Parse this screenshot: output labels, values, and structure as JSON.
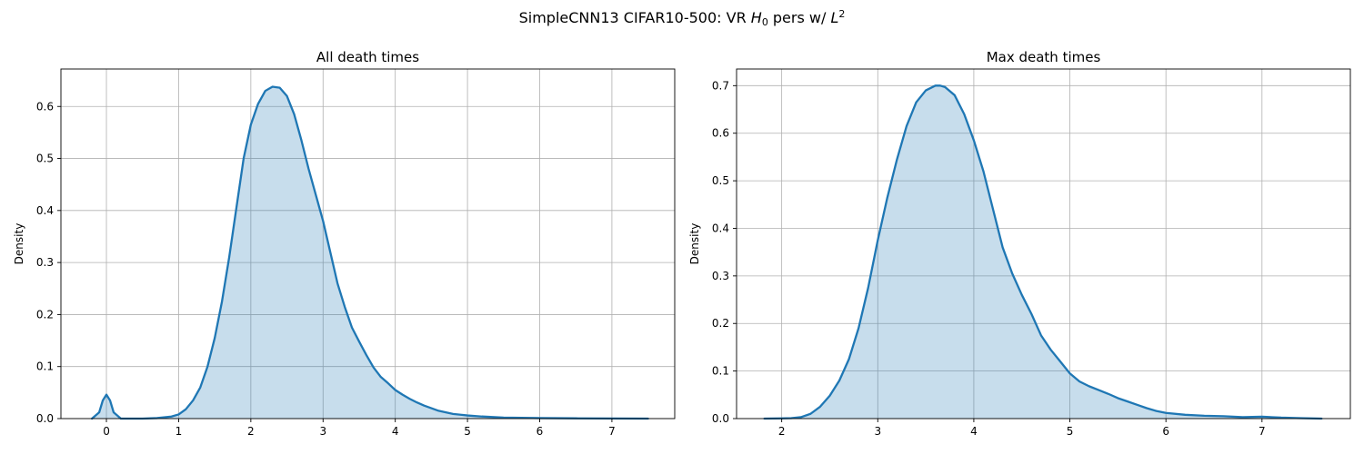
{
  "figure": {
    "title_prefix": "SimpleCNN13 CIFAR10-500: VR ",
    "title_h": "H",
    "title_h_sub": "0",
    "title_mid": " pers w/ ",
    "title_l": "L",
    "title_l_sup": "2"
  },
  "colors": {
    "line": "#1f77b4",
    "fill": "#1f77b4",
    "grid": "#b0b0b0"
  },
  "chart_data": [
    {
      "type": "area",
      "title": "All death times",
      "xlabel": "",
      "ylabel": "Density",
      "xlim": [
        -0.63,
        7.87
      ],
      "ylim": [
        0,
        0.672
      ],
      "xticks": [
        0,
        1,
        2,
        3,
        4,
        5,
        6,
        7
      ],
      "yticks": [
        0.0,
        0.1,
        0.2,
        0.3,
        0.4,
        0.5,
        0.6
      ],
      "grid": true,
      "series": [
        {
          "x": [
            -0.2,
            -0.1,
            -0.05,
            0.0,
            0.05,
            0.1,
            0.2,
            0.3,
            0.5,
            0.7,
            0.9,
            1.0,
            1.1,
            1.2,
            1.3,
            1.4,
            1.5,
            1.6,
            1.7,
            1.8,
            1.9,
            2.0,
            2.1,
            2.2,
            2.3,
            2.4,
            2.5,
            2.6,
            2.7,
            2.8,
            2.9,
            3.0,
            3.1,
            3.2,
            3.3,
            3.4,
            3.5,
            3.6,
            3.7,
            3.8,
            3.9,
            4.0,
            4.1,
            4.2,
            4.3,
            4.4,
            4.5,
            4.6,
            4.8,
            5.0,
            5.2,
            5.5,
            6.0,
            6.5,
            7.0,
            7.5
          ],
          "y": [
            0.0,
            0.012,
            0.035,
            0.046,
            0.035,
            0.012,
            0.0,
            0.0,
            0.0,
            0.001,
            0.004,
            0.008,
            0.018,
            0.035,
            0.06,
            0.1,
            0.155,
            0.225,
            0.31,
            0.405,
            0.5,
            0.565,
            0.605,
            0.63,
            0.638,
            0.636,
            0.62,
            0.585,
            0.535,
            0.48,
            0.43,
            0.38,
            0.32,
            0.26,
            0.215,
            0.175,
            0.148,
            0.122,
            0.098,
            0.08,
            0.068,
            0.055,
            0.046,
            0.038,
            0.031,
            0.025,
            0.02,
            0.015,
            0.009,
            0.006,
            0.004,
            0.002,
            0.001,
            0.0005,
            0.0002,
            0.0
          ]
        }
      ]
    },
    {
      "type": "area",
      "title": "Max death times",
      "xlabel": "",
      "ylabel": "Density",
      "xlim": [
        1.53,
        7.92
      ],
      "ylim": [
        0,
        0.735
      ],
      "xticks": [
        2,
        3,
        4,
        5,
        6,
        7
      ],
      "yticks": [
        0.0,
        0.1,
        0.2,
        0.3,
        0.4,
        0.5,
        0.6,
        0.7
      ],
      "grid": true,
      "series": [
        {
          "x": [
            1.82,
            2.0,
            2.1,
            2.2,
            2.3,
            2.4,
            2.5,
            2.6,
            2.7,
            2.8,
            2.9,
            3.0,
            3.1,
            3.2,
            3.3,
            3.4,
            3.5,
            3.6,
            3.65,
            3.7,
            3.8,
            3.9,
            4.0,
            4.1,
            4.2,
            4.3,
            4.4,
            4.5,
            4.6,
            4.7,
            4.8,
            4.9,
            5.0,
            5.1,
            5.2,
            5.3,
            5.4,
            5.5,
            5.6,
            5.7,
            5.8,
            5.9,
            6.0,
            6.2,
            6.4,
            6.6,
            6.8,
            7.0,
            7.2,
            7.4,
            7.62
          ],
          "y": [
            0.0,
            0.0005,
            0.001,
            0.003,
            0.01,
            0.025,
            0.048,
            0.08,
            0.125,
            0.19,
            0.275,
            0.375,
            0.465,
            0.545,
            0.615,
            0.665,
            0.69,
            0.7,
            0.7,
            0.697,
            0.68,
            0.64,
            0.585,
            0.52,
            0.44,
            0.36,
            0.305,
            0.26,
            0.22,
            0.175,
            0.145,
            0.12,
            0.095,
            0.078,
            0.068,
            0.06,
            0.052,
            0.043,
            0.036,
            0.029,
            0.022,
            0.016,
            0.012,
            0.008,
            0.006,
            0.005,
            0.003,
            0.004,
            0.002,
            0.001,
            0.0
          ]
        }
      ]
    }
  ]
}
